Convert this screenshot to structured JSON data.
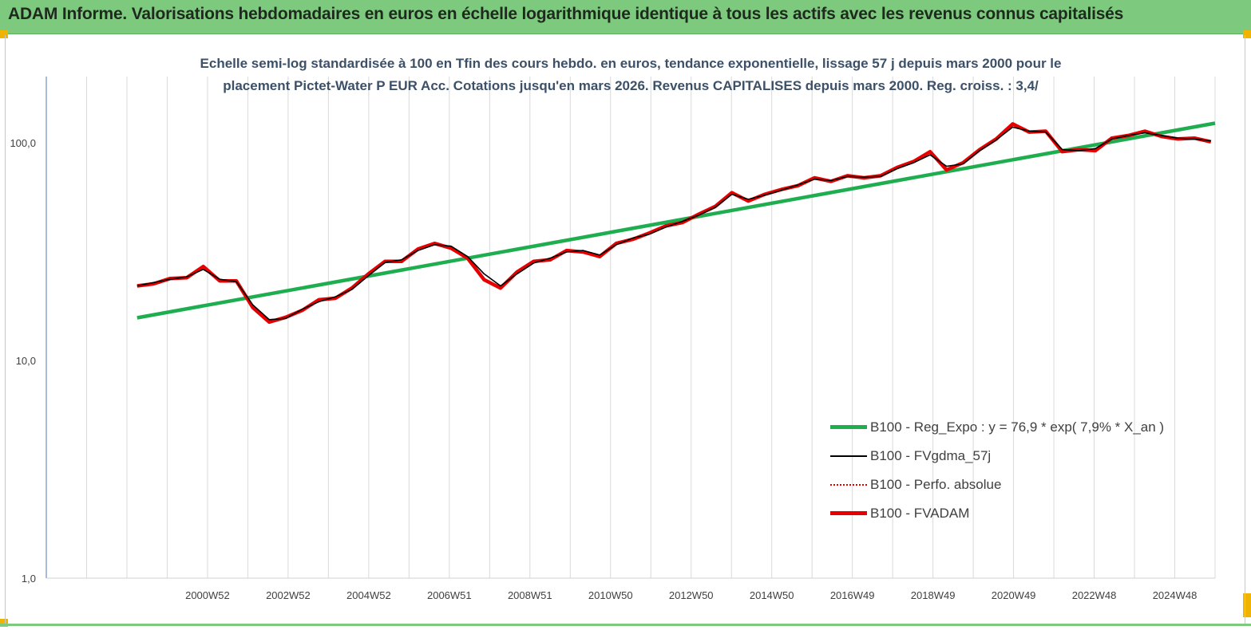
{
  "banner": {
    "title": "ADAM Informe. Valorisations hebdomadaires en euros en échelle logarithmique identique à tous les actifs avec les revenus connus capitalisés"
  },
  "subtitle": {
    "line1": "Echelle semi-log standardisée à 100 en Tfin des cours hebdo. en euros, tendance exponentielle, lissage 57 j depuis mars 2000 pour le",
    "line2": "placement Pictet-Water P  EUR Acc.  Cotations jusqu'en mars 2026.  Revenus CAPITALISES depuis mars 2000.  Reg. croiss. : 3,4/"
  },
  "colors": {
    "banner": "#7dc97d",
    "regression": "#1fae4f",
    "smoothed": "#000000",
    "absolute": "#e00000",
    "fvadam": "#e80000",
    "corner": "#f0b400"
  },
  "chart_data": {
    "type": "line",
    "yscale": "log",
    "ylim": [
      1,
      200
    ],
    "y_ticks": [
      "1,0",
      "10,0",
      "100,0"
    ],
    "x_tick_labels": [
      "2000W52",
      "2002W52",
      "2004W52",
      "2006W51",
      "2008W51",
      "2010W50",
      "2012W50",
      "2014W50",
      "2016W49",
      "2018W49",
      "2020W49",
      "2022W48",
      "2024W48"
    ],
    "xlim": [
      1998.0,
      2026.3
    ],
    "grid": "vertical",
    "legend_position": "bottom-right",
    "series": [
      {
        "name": "B100 - Reg_Expo : y = 76,9 * exp( 7,9% *  X_an )",
        "style": "thick",
        "x": [
          2000.2,
          2026.3
        ],
        "y": [
          15.7,
          123
        ]
      },
      {
        "name": "B100 - FVgdma_57j",
        "style": "thin",
        "x": [
          2000.2,
          2000.6,
          2001.0,
          2001.4,
          2001.8,
          2002.2,
          2002.6,
          2003.0,
          2003.4,
          2003.8,
          2004.2,
          2004.6,
          2005.0,
          2005.4,
          2005.8,
          2006.2,
          2006.6,
          2007.0,
          2007.4,
          2007.8,
          2008.2,
          2008.6,
          2009.0,
          2009.4,
          2009.8,
          2010.2,
          2010.6,
          2011.0,
          2011.4,
          2011.8,
          2012.2,
          2012.6,
          2013.0,
          2013.4,
          2013.8,
          2014.2,
          2014.6,
          2015.0,
          2015.4,
          2015.8,
          2016.2,
          2016.6,
          2017.0,
          2017.4,
          2017.8,
          2018.2,
          2018.6,
          2019.0,
          2019.4,
          2019.8,
          2020.2,
          2020.6,
          2021.0,
          2021.4,
          2021.8,
          2022.2,
          2022.6,
          2023.0,
          2023.4,
          2023.8,
          2024.2,
          2024.6,
          2025.0,
          2025.4,
          2025.8,
          2026.2
        ],
        "y": [
          22.0,
          22.8,
          23.6,
          24.2,
          26.2,
          23.6,
          23.0,
          18.0,
          15.4,
          15.6,
          17.2,
          18.6,
          19.6,
          21.2,
          24.5,
          28.2,
          29.0,
          32.0,
          34.0,
          33.5,
          30.0,
          25.0,
          22.0,
          25.0,
          28.0,
          29.5,
          31.5,
          32.0,
          30.5,
          34.0,
          36.5,
          38.0,
          41.0,
          43.5,
          46.5,
          50.5,
          58.0,
          55.0,
          57.5,
          60.5,
          64.0,
          68.0,
          67.0,
          70.0,
          69.5,
          70.0,
          76.0,
          81.0,
          88.0,
          78.0,
          80.0,
          92.0,
          103.0,
          118.0,
          113.0,
          112.0,
          93.0,
          92.0,
          94.0,
          104.0,
          108.0,
          111.0,
          108.0,
          105.0,
          104.0,
          102.0
        ]
      },
      {
        "name": "B100 - Perfo. absolue",
        "style": "dotted",
        "x": [
          2000.2,
          2000.6,
          2001.0,
          2001.4,
          2001.8,
          2002.2,
          2002.6,
          2003.0,
          2003.4,
          2003.8,
          2004.2,
          2004.6,
          2005.0,
          2005.4,
          2005.8,
          2006.2,
          2006.6,
          2007.0,
          2007.4,
          2007.8,
          2008.2,
          2008.6,
          2009.0,
          2009.4,
          2009.8,
          2010.2,
          2010.6,
          2011.0,
          2011.4,
          2011.8,
          2012.2,
          2012.6,
          2013.0,
          2013.4,
          2013.8,
          2014.2,
          2014.6,
          2015.0,
          2015.4,
          2015.8,
          2016.2,
          2016.6,
          2017.0,
          2017.4,
          2017.8,
          2018.2,
          2018.6,
          2019.0,
          2019.4,
          2019.8,
          2020.2,
          2020.6,
          2021.0,
          2021.4,
          2021.8,
          2022.2,
          2022.6,
          2023.0,
          2023.4,
          2023.8,
          2024.2,
          2024.6,
          2025.0,
          2025.4,
          2025.8,
          2026.2
        ],
        "y": [
          22.0,
          22.8,
          23.6,
          24.2,
          26.2,
          23.6,
          23.0,
          18.0,
          15.4,
          15.6,
          17.2,
          18.6,
          19.6,
          21.2,
          24.5,
          28.2,
          29.0,
          32.0,
          34.0,
          33.5,
          30.0,
          25.0,
          22.0,
          25.0,
          28.0,
          29.5,
          31.5,
          32.0,
          30.5,
          34.0,
          36.5,
          38.0,
          41.0,
          43.5,
          46.5,
          50.5,
          58.0,
          55.0,
          57.5,
          60.5,
          64.0,
          68.0,
          67.0,
          70.0,
          69.5,
          70.0,
          76.0,
          81.0,
          88.0,
          78.0,
          80.0,
          92.0,
          103.0,
          118.0,
          113.0,
          112.0,
          93.0,
          92.0,
          94.0,
          104.0,
          108.0,
          111.0,
          108.0,
          105.0,
          104.0,
          102.0
        ]
      },
      {
        "name": "B100 - FVADAM",
        "style": "thick",
        "x": [
          2000.2,
          2000.6,
          2001.0,
          2001.4,
          2001.8,
          2002.2,
          2002.6,
          2003.0,
          2003.4,
          2003.8,
          2004.2,
          2004.6,
          2005.0,
          2005.4,
          2005.8,
          2006.2,
          2006.6,
          2007.0,
          2007.4,
          2007.8,
          2008.2,
          2008.6,
          2009.0,
          2009.4,
          2009.8,
          2010.2,
          2010.6,
          2011.0,
          2011.4,
          2011.8,
          2012.2,
          2012.6,
          2013.0,
          2013.4,
          2013.8,
          2014.2,
          2014.6,
          2015.0,
          2015.4,
          2015.8,
          2016.2,
          2016.6,
          2017.0,
          2017.4,
          2017.8,
          2018.2,
          2018.6,
          2019.0,
          2019.4,
          2019.8,
          2020.2,
          2020.6,
          2021.0,
          2021.4,
          2021.8,
          2022.2,
          2022.6,
          2023.0,
          2023.4,
          2023.8,
          2024.2,
          2024.6,
          2025.0,
          2025.4,
          2025.8,
          2026.2
        ],
        "y": [
          22.0,
          22.5,
          23.8,
          24.0,
          27.0,
          23.2,
          23.2,
          17.5,
          15.0,
          15.8,
          17.0,
          19.0,
          19.3,
          21.5,
          25.0,
          28.5,
          28.5,
          32.5,
          34.5,
          32.8,
          29.5,
          23.5,
          21.5,
          25.5,
          28.5,
          29.0,
          32.0,
          31.5,
          30.0,
          34.5,
          36.0,
          38.5,
          41.5,
          43.0,
          47.0,
          51.0,
          59.0,
          54.0,
          58.0,
          61.0,
          63.5,
          69.0,
          66.5,
          70.5,
          69.0,
          70.5,
          77.0,
          82.0,
          91.0,
          75.0,
          81.0,
          93.0,
          104.0,
          122.0,
          112.0,
          113.0,
          91.0,
          93.0,
          92.0,
          105.0,
          108.0,
          113.0,
          107.0,
          104.0,
          105.0,
          101.0
        ]
      }
    ]
  },
  "legend": {
    "items": [
      {
        "label": "B100 - Reg_Expo : y = 76,9 * exp( 7,9% *  X_an )",
        "style": "thick",
        "color": "#1fae4f"
      },
      {
        "label": "B100 - FVgdma_57j",
        "style": "thin",
        "color": "#000000"
      },
      {
        "label": "B100 - Perfo. absolue",
        "style": "dotted",
        "color": "#e00000"
      },
      {
        "label": "B100 - FVADAM",
        "style": "thick",
        "color": "#e80000"
      }
    ]
  }
}
